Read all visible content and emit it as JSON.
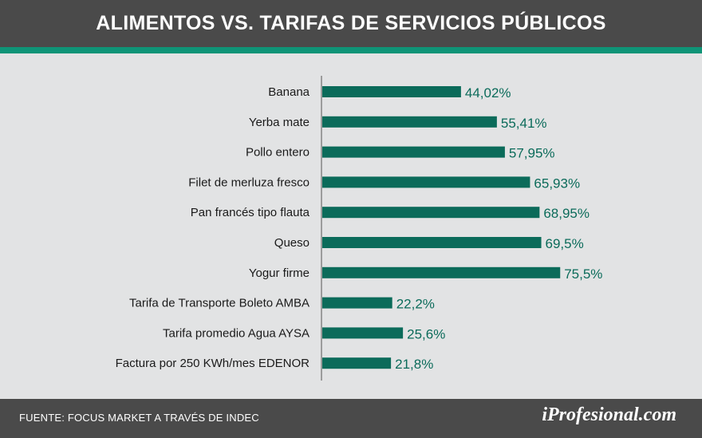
{
  "header": {
    "title": "ALIMENTOS VS. TARIFAS DE SERVICIOS PÚBLICOS"
  },
  "colors": {
    "bar": "#0b6b5a",
    "label_value": "#0b6b5a",
    "category_text": "#1a1a1a",
    "axis": "#555555"
  },
  "chart_data": {
    "type": "bar",
    "orientation": "horizontal",
    "title": "ALIMENTOS VS. TARIFAS DE SERVICIOS PÚBLICOS",
    "xlabel": "",
    "ylabel": "",
    "xlim": [
      0,
      100
    ],
    "grid": false,
    "categories": [
      "Banana",
      "Yerba mate",
      "Pollo entero",
      "Filet de merluza fresco",
      "Pan francés tipo flauta",
      "Queso",
      "Yogur firme",
      "Tarifa de Transporte Boleto AMBA",
      "Tarifa promedio Agua AYSA",
      "Factura por 250 KWh/mes EDENOR"
    ],
    "values": [
      44.02,
      55.41,
      57.95,
      65.93,
      68.95,
      69.5,
      75.5,
      22.2,
      25.6,
      21.8
    ],
    "value_labels": [
      "44,02%",
      "55,41%",
      "57,95%",
      "65,93%",
      "68,95%",
      "69,5%",
      "75,5%",
      "22,2%",
      "25,6%",
      "21,8%"
    ]
  },
  "footer": {
    "source": "FUENTE: FOCUS MARKET A TRAVÉS DE INDEC",
    "logo": "iProfesional.com"
  }
}
